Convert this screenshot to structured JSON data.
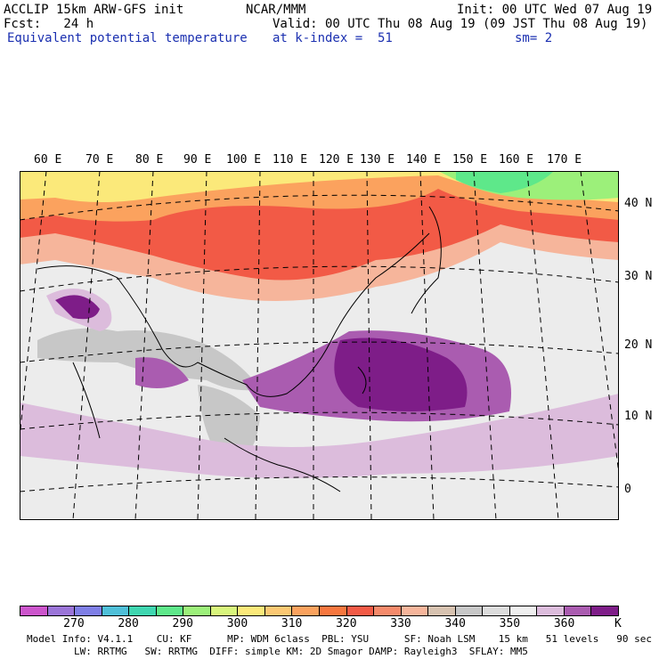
{
  "header": {
    "model": "ACCLIP 15km ARW-GFS init",
    "org": "NCAR/MMM",
    "init": "Init: 00 UTC Wed 07 Aug 19",
    "fcst": "Fcst:   24 h",
    "valid": "Valid: 00 UTC Thu 08 Aug 19 (09 JST Thu 08 Aug 19)",
    "field": "Equivalent potential temperature",
    "level": "at k-index =  51",
    "smooth": "sm= 2"
  },
  "lon_labels": [
    "60 E",
    "70 E",
    "80 E",
    "90 E",
    "100 E",
    "110 E",
    "120 E",
    "130 E",
    "140 E",
    "150 E",
    "160 E",
    "170 E"
  ],
  "lat_labels": [
    "40 N",
    "30 N",
    "20 N",
    "10 N",
    "0"
  ],
  "colorbar": {
    "labels": [
      "270",
      "280",
      "290",
      "300",
      "310",
      "320",
      "330",
      "340",
      "350",
      "360"
    ],
    "unit": "K",
    "colors": [
      "#cc55cc",
      "#9b75d8",
      "#7f7fe6",
      "#4fbfd8",
      "#3fd6b0",
      "#5ee88a",
      "#9cf07a",
      "#d8f57c",
      "#fbe97a",
      "#fbc873",
      "#fba25e",
      "#f7773f",
      "#f25a46",
      "#f58a6b",
      "#f6b59b",
      "#d7c2b0",
      "#c7c7c7",
      "#dcdcdc",
      "#efefef",
      "#dcbcdc",
      "#aa5cb0",
      "#7e1d88"
    ]
  },
  "model_info": {
    "line1": "Model Info: V4.1.1    CU: KF      MP: WDM 6class  PBL: YSU      SF: Noah LSM    15 km   51 levels   90 sec",
    "line2": "        LW: RRTMG   SW: RRTMG  DIFF: simple KM: 2D Smagor DAMP: Rayleigh3  SFLAY: MM5"
  }
}
